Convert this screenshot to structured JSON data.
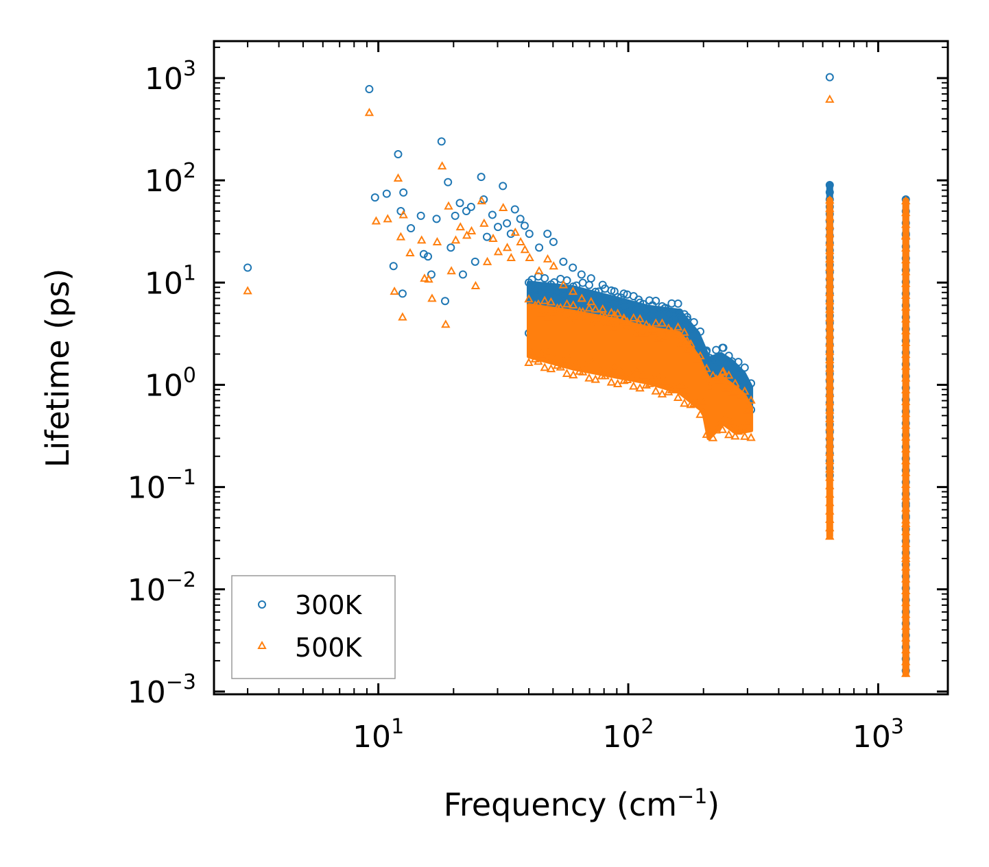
{
  "chart_data": {
    "type": "scatter",
    "xscale": "log",
    "yscale": "log",
    "xlim": [
      2.2,
      1900
    ],
    "ylim": [
      0.00094,
      2300
    ],
    "xlabel": {
      "base": "Frequency (cm",
      "sup": "−1",
      "tail": ")"
    },
    "ylabel": "Lifetime (ps)",
    "x_ticks": [
      {
        "value": 10,
        "base": "10",
        "exp": "1"
      },
      {
        "value": 100,
        "base": "10",
        "exp": "2"
      },
      {
        "value": 1000,
        "base": "10",
        "exp": "3"
      }
    ],
    "y_ticks": [
      {
        "value": 0.001,
        "base": "10",
        "exp": "−3"
      },
      {
        "value": 0.01,
        "base": "10",
        "exp": "−2"
      },
      {
        "value": 0.1,
        "base": "10",
        "exp": "−1"
      },
      {
        "value": 1,
        "base": "10",
        "exp": "0"
      },
      {
        "value": 10,
        "base": "10",
        "exp": "1"
      },
      {
        "value": 100,
        "base": "10",
        "exp": "2"
      },
      {
        "value": 1000,
        "base": "10",
        "exp": "3"
      }
    ],
    "legend_position": "lower-left",
    "series": [
      {
        "name": "300K",
        "marker": "circle",
        "color": "#1f77b4",
        "points": [
          [
            3.0,
            14.0
          ],
          [
            9.2,
            780
          ],
          [
            9.7,
            68
          ],
          [
            10.8,
            74
          ],
          [
            11.5,
            14.5
          ],
          [
            12.0,
            180
          ],
          [
            12.3,
            50
          ],
          [
            12.5,
            7.8
          ],
          [
            12.6,
            76
          ],
          [
            13.5,
            34
          ],
          [
            14.8,
            45
          ],
          [
            15.2,
            19
          ],
          [
            15.8,
            18
          ],
          [
            16.3,
            12
          ],
          [
            17.1,
            42
          ],
          [
            17.9,
            240
          ],
          [
            18.5,
            6.6
          ],
          [
            19.0,
            96
          ],
          [
            19.5,
            22
          ],
          [
            20.3,
            45
          ],
          [
            21.2,
            60
          ],
          [
            21.8,
            12
          ],
          [
            22.5,
            50
          ],
          [
            23.5,
            55
          ],
          [
            24.4,
            16
          ],
          [
            25.8,
            108
          ],
          [
            26.4,
            65
          ],
          [
            27.2,
            28
          ],
          [
            28.6,
            46
          ],
          [
            30.1,
            35
          ],
          [
            31.5,
            88
          ],
          [
            32.7,
            38
          ],
          [
            33.9,
            30
          ],
          [
            35.2,
            52
          ],
          [
            37.0,
            42
          ],
          [
            38.5,
            36
          ],
          [
            40.2,
            30
          ],
          [
            44.0,
            22
          ],
          [
            47.5,
            30
          ],
          [
            50.2,
            25
          ],
          [
            55.0,
            16
          ],
          [
            60.0,
            14
          ],
          [
            65.0,
            12
          ],
          [
            71.0,
            11
          ],
          [
            79.0,
            9.5
          ],
          [
            88.0,
            8.2
          ],
          [
            96.0,
            7.8
          ],
          [
            110.0,
            6.8
          ],
          [
            125.0,
            6.0
          ],
          [
            140.0,
            5.6
          ],
          [
            160.0,
            5.1
          ],
          [
            172.0,
            4.6
          ],
          [
            205.0,
            2.1
          ],
          [
            240.0,
            2.3
          ]
        ]
      },
      {
        "name": "500K",
        "marker": "triangle",
        "color": "#ff7f0e",
        "points": [
          [
            3.0,
            8.3
          ],
          [
            9.2,
            460
          ],
          [
            9.8,
            40
          ],
          [
            10.9,
            42
          ],
          [
            11.6,
            8.2
          ],
          [
            12.0,
            105
          ],
          [
            12.3,
            28
          ],
          [
            12.5,
            4.6
          ],
          [
            12.6,
            46
          ],
          [
            13.4,
            19.5
          ],
          [
            14.9,
            26
          ],
          [
            15.3,
            11
          ],
          [
            15.9,
            10.8
          ],
          [
            16.4,
            7
          ],
          [
            17.2,
            25
          ],
          [
            18.0,
            138
          ],
          [
            18.6,
            3.9
          ],
          [
            19.1,
            56
          ],
          [
            19.6,
            13
          ],
          [
            20.4,
            26
          ],
          [
            21.3,
            35
          ],
          [
            22.6,
            29
          ],
          [
            23.6,
            32
          ],
          [
            24.5,
            9.3
          ],
          [
            25.9,
            63
          ],
          [
            26.5,
            38
          ],
          [
            27.3,
            16
          ],
          [
            28.8,
            27
          ],
          [
            30.2,
            20
          ],
          [
            31.6,
            54
          ],
          [
            32.8,
            22
          ],
          [
            34.0,
            17.5
          ],
          [
            35.3,
            31
          ],
          [
            37.1,
            25
          ],
          [
            38.6,
            21
          ],
          [
            40.3,
            17.5
          ],
          [
            44.0,
            13
          ],
          [
            47.6,
            17
          ],
          [
            50.3,
            14.5
          ],
          [
            55.0,
            9.5
          ],
          [
            60.1,
            8.2
          ],
          [
            65.2,
            7
          ],
          [
            71.0,
            6.5
          ],
          [
            79.0,
            5.5
          ],
          [
            88.0,
            4.8
          ],
          [
            96.0,
            4.5
          ],
          [
            110.0,
            4
          ],
          [
            125.0,
            3.5
          ],
          [
            172.0,
            2.7
          ],
          [
            205.0,
            1.25
          ],
          [
            240.0,
            1.35
          ]
        ]
      }
    ],
    "bands": [
      {
        "series": "300K",
        "x_range": [
          40,
          310
        ],
        "y_top": [
          [
            40,
            10
          ],
          [
            60,
            9
          ],
          [
            90,
            7
          ],
          [
            120,
            5.8
          ],
          [
            160,
            5.3
          ],
          [
            190,
            3.2
          ],
          [
            210,
            1.8
          ],
          [
            235,
            2.0
          ],
          [
            260,
            1.7
          ],
          [
            290,
            1.3
          ],
          [
            310,
            0.95
          ]
        ],
        "y_bottom": [
          [
            40,
            3.2
          ],
          [
            60,
            2.4
          ],
          [
            90,
            2.0
          ],
          [
            120,
            1.8
          ],
          [
            160,
            1.4
          ],
          [
            200,
            0.9
          ],
          [
            210,
            0.52
          ],
          [
            240,
            0.72
          ],
          [
            270,
            0.58
          ],
          [
            310,
            0.62
          ]
        ]
      },
      {
        "series": "500K",
        "x_range": [
          40,
          310
        ],
        "y_top": [
          [
            40,
            6
          ],
          [
            60,
            5.2
          ],
          [
            90,
            4.3
          ],
          [
            120,
            3.6
          ],
          [
            160,
            3.2
          ],
          [
            190,
            1.9
          ],
          [
            210,
            1.1
          ],
          [
            235,
            1.2
          ],
          [
            260,
            1.0
          ],
          [
            290,
            0.8
          ],
          [
            310,
            0.6
          ]
        ],
        "y_bottom": [
          [
            40,
            1.9
          ],
          [
            60,
            1.45
          ],
          [
            90,
            1.2
          ],
          [
            120,
            1.05
          ],
          [
            160,
            0.85
          ],
          [
            200,
            0.55
          ],
          [
            210,
            0.3
          ],
          [
            240,
            0.42
          ],
          [
            270,
            0.34
          ],
          [
            310,
            0.36
          ]
        ]
      }
    ],
    "columns": [
      {
        "series": "300K",
        "x": 640,
        "y_min": 0.13,
        "y_max": 90,
        "outliers": [
          1020
        ]
      },
      {
        "series": "500K",
        "x": 640,
        "y_min": 0.033,
        "y_max": 64,
        "outliers": [
          620
        ]
      },
      {
        "series": "300K",
        "x": 1290,
        "y_min": 0.0016,
        "y_max": 65,
        "outliers": [
          30,
          0.052,
          0.069
        ]
      },
      {
        "series": "500K",
        "x": 1290,
        "y_min": 0.0015,
        "y_max": 63,
        "outliers": [
          29,
          0.044,
          0.02
        ]
      }
    ]
  }
}
